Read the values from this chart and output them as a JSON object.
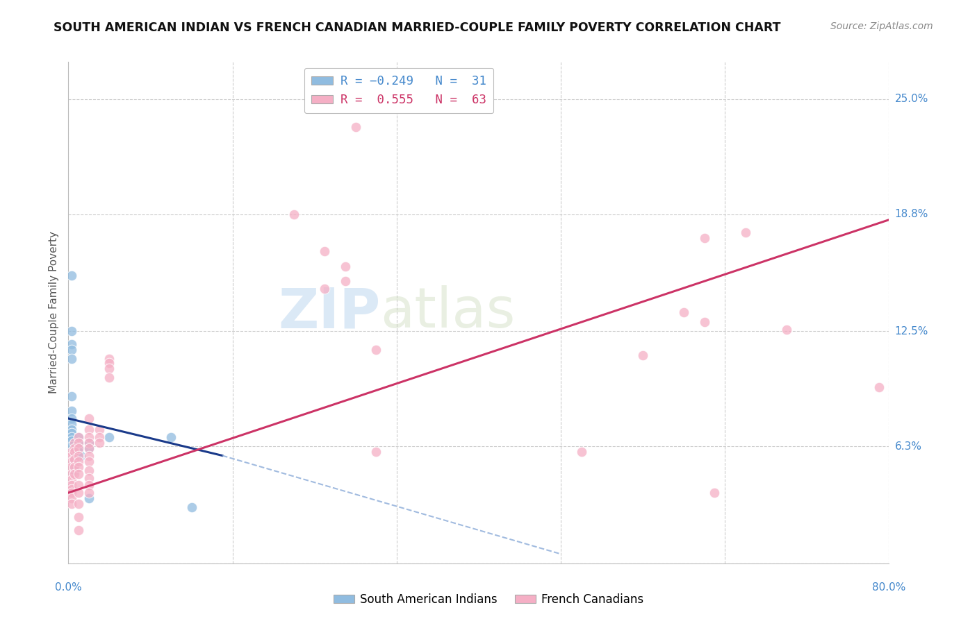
{
  "title": "SOUTH AMERICAN INDIAN VS FRENCH CANADIAN MARRIED-COUPLE FAMILY POVERTY CORRELATION CHART",
  "source": "Source: ZipAtlas.com",
  "ylabel": "Married-Couple Family Poverty",
  "xlabel": "",
  "xlim": [
    0.0,
    0.8
  ],
  "ylim": [
    0.0,
    0.27
  ],
  "ytick_vals": [
    0.0,
    0.063,
    0.125,
    0.188,
    0.25
  ],
  "ytick_labels": [
    "",
    "6.3%",
    "12.5%",
    "18.8%",
    "25.0%"
  ],
  "xtick_vals": [
    0.0,
    0.16,
    0.32,
    0.48,
    0.64,
    0.8
  ],
  "blue_color": "#90bce0",
  "blue_edge_color": "#5a8ec0",
  "pink_color": "#f5afc5",
  "pink_edge_color": "#e080a0",
  "blue_line_color": "#1a3a8a",
  "blue_line_dash_color": "#8aaad8",
  "pink_line_color": "#cc3366",
  "watermark_text": "ZIPatlas",
  "background_color": "#ffffff",
  "grid_color": "#cccccc",
  "title_fontsize": 12.5,
  "source_fontsize": 10,
  "axis_label_fontsize": 11,
  "tick_fontsize": 11,
  "tick_color": "#4488cc",
  "blue_points": [
    [
      0.003,
      0.155
    ],
    [
      0.003,
      0.125
    ],
    [
      0.003,
      0.118
    ],
    [
      0.003,
      0.115
    ],
    [
      0.003,
      0.11
    ],
    [
      0.003,
      0.09
    ],
    [
      0.003,
      0.082
    ],
    [
      0.003,
      0.078
    ],
    [
      0.003,
      0.075
    ],
    [
      0.003,
      0.072
    ],
    [
      0.003,
      0.07
    ],
    [
      0.003,
      0.068
    ],
    [
      0.003,
      0.066
    ],
    [
      0.003,
      0.063
    ],
    [
      0.006,
      0.06
    ],
    [
      0.006,
      0.058
    ],
    [
      0.006,
      0.056
    ],
    [
      0.006,
      0.054
    ],
    [
      0.006,
      0.052
    ],
    [
      0.006,
      0.05
    ],
    [
      0.01,
      0.068
    ],
    [
      0.01,
      0.065
    ],
    [
      0.01,
      0.062
    ],
    [
      0.01,
      0.06
    ],
    [
      0.012,
      0.058
    ],
    [
      0.02,
      0.065
    ],
    [
      0.02,
      0.062
    ],
    [
      0.02,
      0.035
    ],
    [
      0.04,
      0.068
    ],
    [
      0.1,
      0.068
    ],
    [
      0.12,
      0.03
    ]
  ],
  "pink_points": [
    [
      0.28,
      0.235
    ],
    [
      0.22,
      0.188
    ],
    [
      0.25,
      0.168
    ],
    [
      0.27,
      0.16
    ],
    [
      0.27,
      0.152
    ],
    [
      0.25,
      0.148
    ],
    [
      0.3,
      0.115
    ],
    [
      0.003,
      0.06
    ],
    [
      0.003,
      0.058
    ],
    [
      0.003,
      0.055
    ],
    [
      0.003,
      0.052
    ],
    [
      0.003,
      0.048
    ],
    [
      0.003,
      0.045
    ],
    [
      0.003,
      0.042
    ],
    [
      0.003,
      0.04
    ],
    [
      0.003,
      0.038
    ],
    [
      0.003,
      0.035
    ],
    [
      0.003,
      0.032
    ],
    [
      0.006,
      0.065
    ],
    [
      0.006,
      0.062
    ],
    [
      0.006,
      0.06
    ],
    [
      0.006,
      0.056
    ],
    [
      0.006,
      0.052
    ],
    [
      0.006,
      0.048
    ],
    [
      0.01,
      0.068
    ],
    [
      0.01,
      0.065
    ],
    [
      0.01,
      0.062
    ],
    [
      0.01,
      0.058
    ],
    [
      0.01,
      0.055
    ],
    [
      0.01,
      0.052
    ],
    [
      0.01,
      0.048
    ],
    [
      0.01,
      0.042
    ],
    [
      0.01,
      0.038
    ],
    [
      0.01,
      0.032
    ],
    [
      0.01,
      0.025
    ],
    [
      0.01,
      0.018
    ],
    [
      0.02,
      0.078
    ],
    [
      0.02,
      0.072
    ],
    [
      0.02,
      0.068
    ],
    [
      0.02,
      0.065
    ],
    [
      0.02,
      0.062
    ],
    [
      0.02,
      0.058
    ],
    [
      0.02,
      0.055
    ],
    [
      0.02,
      0.05
    ],
    [
      0.02,
      0.046
    ],
    [
      0.02,
      0.042
    ],
    [
      0.02,
      0.038
    ],
    [
      0.03,
      0.072
    ],
    [
      0.03,
      0.068
    ],
    [
      0.03,
      0.065
    ],
    [
      0.04,
      0.11
    ],
    [
      0.04,
      0.108
    ],
    [
      0.04,
      0.105
    ],
    [
      0.04,
      0.1
    ],
    [
      0.3,
      0.06
    ],
    [
      0.5,
      0.06
    ],
    [
      0.56,
      0.112
    ],
    [
      0.6,
      0.135
    ],
    [
      0.62,
      0.13
    ],
    [
      0.63,
      0.038
    ],
    [
      0.66,
      0.178
    ],
    [
      0.7,
      0.126
    ],
    [
      0.79,
      0.095
    ],
    [
      0.62,
      0.175
    ]
  ],
  "blue_line_x0": 0.0,
  "blue_line_y0": 0.078,
  "blue_line_x1": 0.15,
  "blue_line_y1": 0.058,
  "blue_line_dash_x0": 0.15,
  "blue_line_dash_y0": 0.058,
  "blue_line_dash_x1": 0.48,
  "blue_line_dash_y1": 0.005,
  "pink_line_x0": 0.0,
  "pink_line_y0": 0.038,
  "pink_line_x1": 0.8,
  "pink_line_y1": 0.185
}
